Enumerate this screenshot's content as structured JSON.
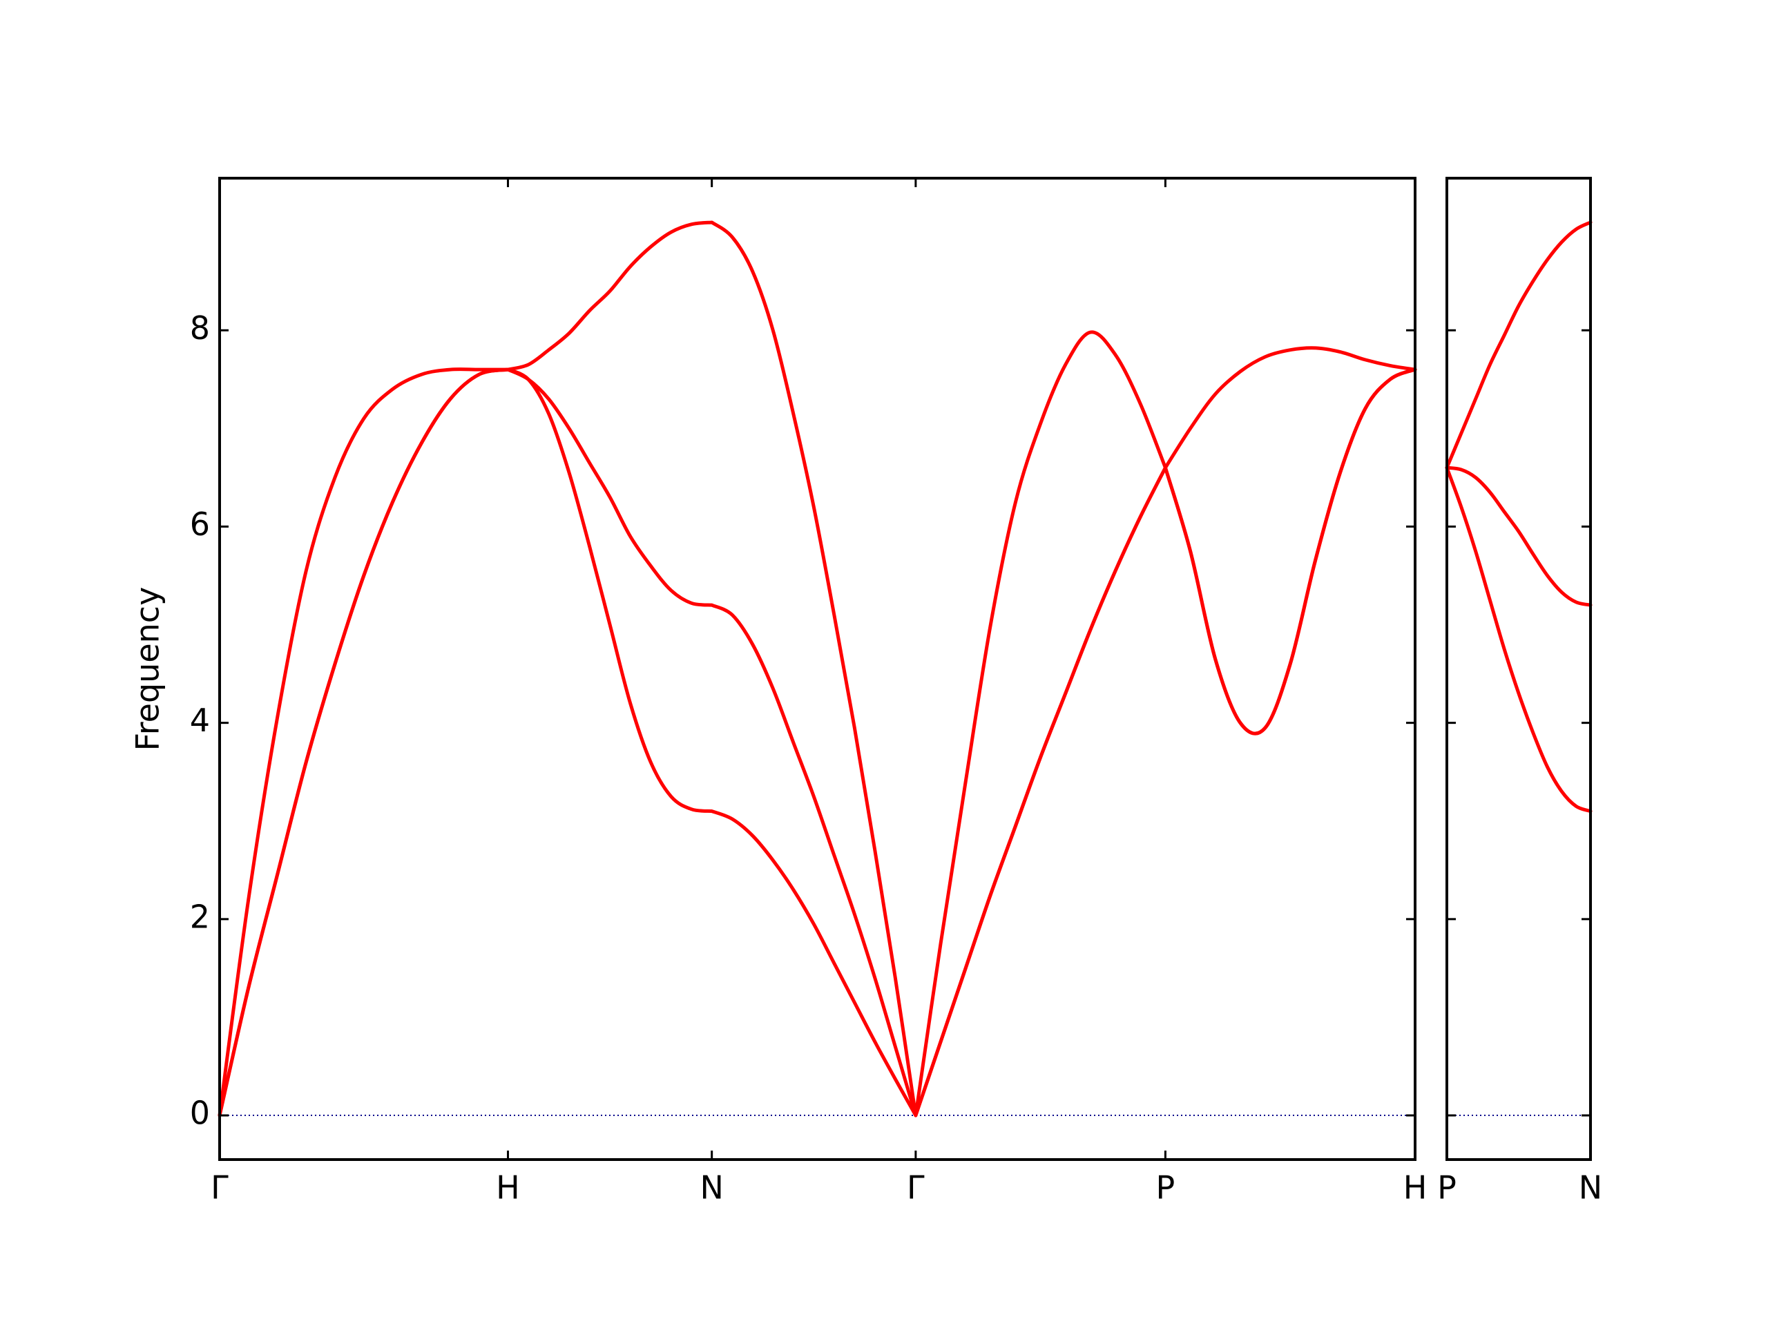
{
  "chart_data": [
    {
      "type": "line",
      "ylabel": "Frequency",
      "x": [
        0,
        0.1,
        0.2,
        0.3,
        0.4,
        0.5,
        0.6,
        0.7,
        0.8,
        0.9,
        1.0,
        1.0707,
        1.1414,
        1.2121,
        1.2828,
        1.3536,
        1.4243,
        1.495,
        1.5657,
        1.6364,
        1.7071,
        1.7778,
        1.8485,
        1.9192,
        1.9899,
        2.0607,
        2.1314,
        2.2021,
        2.2728,
        2.3435,
        2.4142,
        2.5008,
        2.5874,
        2.674,
        2.7606,
        2.8472,
        2.9338,
        3.0204,
        3.107,
        3.1936,
        3.2802,
        3.3668,
        3.4534,
        3.54,
        3.6266,
        3.7132,
        3.7999,
        3.8865,
        3.9731,
        4.0597,
        4.1463
      ],
      "series": [
        {
          "color": "#ff0000",
          "values": [
            0,
            1.3,
            2.45,
            3.6,
            4.6,
            5.5,
            6.25,
            6.85,
            7.3,
            7.55,
            7.6,
            7.5,
            7.15,
            6.55,
            5.8,
            5.0,
            4.2,
            3.6,
            3.25,
            3.12,
            3.1,
            3.02,
            2.85,
            2.6,
            2.3,
            1.95,
            1.55,
            1.15,
            0.75,
            0.37,
            0,
            0.75,
            1.5,
            2.25,
            2.95,
            3.65,
            4.3,
            4.95,
            5.55,
            6.1,
            6.6,
            5.75,
            4.65,
            4.0,
            3.95,
            4.6,
            5.65,
            6.55,
            7.2,
            7.5,
            7.6
          ]
        },
        {
          "color": "#ff0000",
          "values": [
            0,
            1.3,
            2.45,
            3.6,
            4.6,
            5.5,
            6.25,
            6.85,
            7.3,
            7.55,
            7.6,
            7.5,
            7.3,
            7.0,
            6.65,
            6.3,
            5.9,
            5.6,
            5.35,
            5.22,
            5.2,
            5.1,
            4.8,
            4.35,
            3.8,
            3.25,
            2.65,
            2.05,
            1.4,
            0.7,
            0,
            0.75,
            1.5,
            2.25,
            2.95,
            3.65,
            4.3,
            4.95,
            5.55,
            6.1,
            6.6,
            5.75,
            4.65,
            4.0,
            3.95,
            4.6,
            5.65,
            6.55,
            7.2,
            7.5,
            7.6
          ]
        },
        {
          "color": "#ff0000",
          "values": [
            0,
            2.2,
            4.05,
            5.55,
            6.5,
            7.1,
            7.4,
            7.55,
            7.6,
            7.6,
            7.6,
            7.65,
            7.8,
            7.97,
            8.2,
            8.4,
            8.65,
            8.85,
            9.0,
            9.08,
            9.1,
            8.95,
            8.6,
            8.0,
            7.15,
            6.2,
            5.1,
            3.95,
            2.7,
            1.4,
            0,
            1.75,
            3.4,
            5.0,
            6.25,
            7.05,
            7.65,
            7.98,
            7.75,
            7.25,
            6.6,
            7.0,
            7.35,
            7.58,
            7.73,
            7.8,
            7.82,
            7.78,
            7.7,
            7.64,
            7.6
          ]
        }
      ],
      "xlim": [
        0,
        4.1463
      ],
      "ylim": [
        -0.45,
        9.55
      ],
      "xticks": [
        {
          "value": 0,
          "label": "Γ"
        },
        {
          "value": 1.0,
          "label": "H"
        },
        {
          "value": 1.7071,
          "label": "N"
        },
        {
          "value": 2.4142,
          "label": "Γ"
        },
        {
          "value": 3.2802,
          "label": "P"
        },
        {
          "value": 4.1463,
          "label": "H"
        }
      ],
      "yticks": [
        0,
        2,
        4,
        6,
        8
      ],
      "y_tick_labels": true,
      "zero_line": {
        "y": 0,
        "color": "#00008b"
      }
    },
    {
      "type": "line",
      "x": [
        0,
        0.05,
        0.1,
        0.15,
        0.2,
        0.25,
        0.3,
        0.35,
        0.4,
        0.45,
        0.5
      ],
      "series": [
        {
          "color": "#ff0000",
          "values": [
            6.6,
            6.2,
            5.75,
            5.25,
            4.75,
            4.3,
            3.9,
            3.55,
            3.3,
            3.15,
            3.1
          ]
        },
        {
          "color": "#ff0000",
          "values": [
            6.6,
            6.58,
            6.5,
            6.35,
            6.15,
            5.95,
            5.72,
            5.5,
            5.33,
            5.23,
            5.2
          ]
        },
        {
          "color": "#ff0000",
          "values": [
            6.6,
            6.95,
            7.3,
            7.65,
            7.95,
            8.25,
            8.5,
            8.72,
            8.9,
            9.03,
            9.1
          ]
        }
      ],
      "xlim": [
        0,
        0.5
      ],
      "ylim": [
        -0.45,
        9.55
      ],
      "xticks": [
        {
          "value": 0,
          "label": "P"
        },
        {
          "value": 0.5,
          "label": "N"
        }
      ],
      "yticks": [
        0,
        2,
        4,
        6,
        8
      ],
      "y_tick_labels": false,
      "zero_line": {
        "y": 0,
        "color": "#00008b"
      }
    }
  ]
}
